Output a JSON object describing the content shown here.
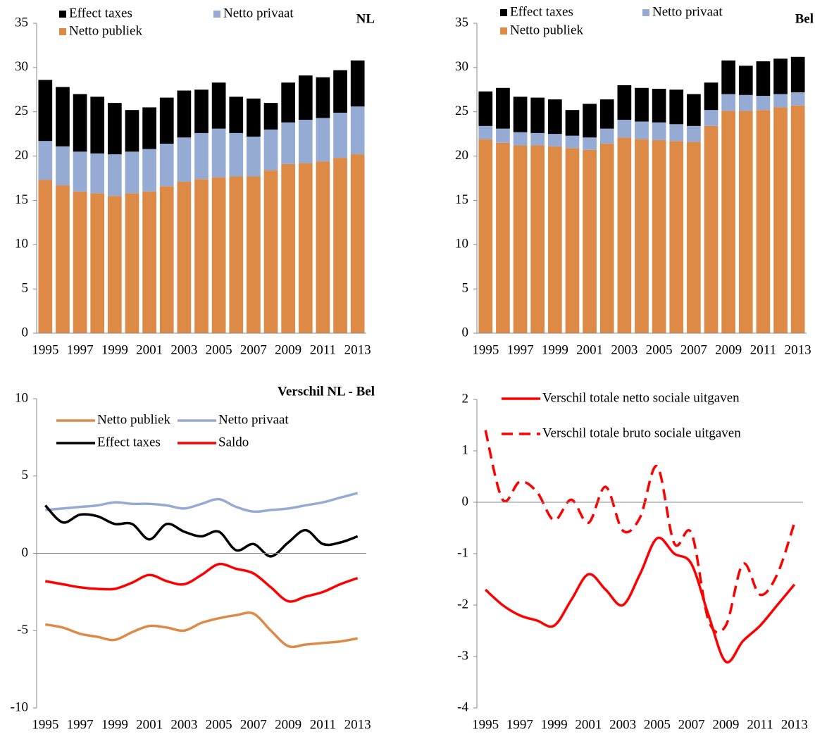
{
  "chart_data": [
    {
      "type": "bar",
      "stacked": true,
      "title": "NL",
      "categories": [
        "1995",
        null,
        "1997",
        null,
        "1999",
        null,
        "2001",
        null,
        "2003",
        null,
        "2005",
        null,
        "2007",
        null,
        "2009",
        null,
        "2011",
        null,
        "2013"
      ],
      "series": [
        {
          "name": "Netto publiek",
          "color": "#de8a47",
          "values": [
            17.3,
            16.7,
            16.0,
            15.8,
            15.5,
            15.8,
            16.0,
            16.6,
            17.1,
            17.4,
            17.6,
            17.7,
            17.7,
            18.4,
            19.1,
            19.2,
            19.4,
            19.8,
            20.2
          ]
        },
        {
          "name": "Netto privaat",
          "color": "#95abd4",
          "values": [
            4.4,
            4.4,
            4.5,
            4.5,
            4.7,
            4.7,
            4.8,
            4.8,
            5.0,
            5.2,
            5.5,
            4.9,
            4.5,
            4.6,
            4.7,
            4.9,
            4.9,
            5.1,
            5.4
          ]
        },
        {
          "name": "Effect taxes",
          "color": "#000000",
          "values": [
            6.9,
            6.7,
            6.5,
            6.4,
            5.8,
            4.7,
            4.7,
            5.2,
            5.3,
            4.9,
            5.2,
            4.1,
            4.3,
            3.0,
            4.5,
            5.0,
            4.6,
            4.8,
            5.2
          ]
        }
      ],
      "ylim": [
        0,
        35
      ],
      "yticks": [
        0,
        5,
        10,
        15,
        20,
        25,
        30,
        35
      ]
    },
    {
      "type": "bar",
      "stacked": true,
      "title": "Bel",
      "categories": [
        "1995",
        null,
        "1997",
        null,
        "1999",
        null,
        "2001",
        null,
        "2003",
        null,
        "2005",
        null,
        "2007",
        null,
        "2009",
        null,
        "2011",
        null,
        "2013"
      ],
      "series": [
        {
          "name": "Netto publiek",
          "color": "#de8a47",
          "values": [
            21.9,
            21.5,
            21.2,
            21.2,
            21.1,
            20.9,
            20.7,
            21.4,
            22.1,
            21.9,
            21.8,
            21.7,
            21.6,
            23.4,
            25.1,
            25.1,
            25.2,
            25.5,
            25.7
          ]
        },
        {
          "name": "Netto privaat",
          "color": "#95abd4",
          "values": [
            1.5,
            1.6,
            1.5,
            1.4,
            1.4,
            1.4,
            1.4,
            1.7,
            2.0,
            2.0,
            2.0,
            1.9,
            1.8,
            1.8,
            1.9,
            1.8,
            1.6,
            1.5,
            1.5
          ]
        },
        {
          "name": "Effect taxes",
          "color": "#000000",
          "values": [
            3.9,
            4.6,
            4.0,
            4.0,
            3.9,
            2.9,
            3.8,
            3.3,
            3.9,
            3.8,
            3.8,
            3.9,
            3.6,
            3.1,
            3.8,
            3.3,
            3.9,
            4.0,
            4.0
          ]
        }
      ],
      "ylim": [
        0,
        35
      ],
      "yticks": [
        0,
        5,
        10,
        15,
        20,
        25,
        30,
        35
      ]
    },
    {
      "type": "line",
      "smooth": true,
      "title": "Verschil NL - Bel",
      "categories": [
        "1995",
        null,
        "1997",
        null,
        "1999",
        null,
        "2001",
        null,
        "2003",
        null,
        "2005",
        null,
        "2007",
        null,
        "2009",
        null,
        "2011",
        null,
        "2013"
      ],
      "series": [
        {
          "name": "Netto publiek",
          "color": "#de8a47",
          "values": [
            -4.6,
            -4.8,
            -5.2,
            -5.4,
            -5.6,
            -5.1,
            -4.7,
            -4.8,
            -5.0,
            -4.5,
            -4.2,
            -4.0,
            -3.9,
            -5.0,
            -6.0,
            -5.9,
            -5.8,
            -5.7,
            -5.5
          ]
        },
        {
          "name": "Netto privaat",
          "color": "#95abd4",
          "values": [
            2.8,
            2.9,
            3.0,
            3.1,
            3.3,
            3.2,
            3.2,
            3.1,
            2.9,
            3.2,
            3.5,
            3.0,
            2.7,
            2.8,
            2.9,
            3.1,
            3.3,
            3.6,
            3.9
          ]
        },
        {
          "name": "Effect taxes",
          "color": "#000000",
          "values": [
            3.1,
            2.0,
            2.5,
            2.4,
            1.9,
            1.9,
            0.9,
            1.9,
            1.4,
            1.1,
            1.4,
            0.2,
            0.6,
            -0.2,
            0.7,
            1.5,
            0.6,
            0.7,
            1.1
          ]
        },
        {
          "name": "Saldo",
          "color": "#ff0000",
          "values": [
            -1.8,
            -2.0,
            -2.2,
            -2.3,
            -2.3,
            -1.9,
            -1.4,
            -1.8,
            -2.0,
            -1.4,
            -0.7,
            -1.0,
            -1.3,
            -2.2,
            -3.1,
            -2.8,
            -2.5,
            -2.0,
            -1.6
          ]
        }
      ],
      "ylim": [
        -10,
        10
      ],
      "yticks": [
        -10,
        -5,
        0,
        5,
        10
      ]
    },
    {
      "type": "line",
      "smooth": true,
      "categories": [
        "1995",
        null,
        "1997",
        null,
        "1999",
        null,
        "2001",
        null,
        "2003",
        null,
        "2005",
        null,
        "2007",
        null,
        "2009",
        null,
        "2011",
        null,
        "2013"
      ],
      "series": [
        {
          "name": "Verschil totale netto sociale uitgaven",
          "color": "#ff0000",
          "dashed": false,
          "values": [
            -1.7,
            -2.0,
            -2.2,
            -2.3,
            -2.4,
            -1.9,
            -1.4,
            -1.7,
            -2.0,
            -1.4,
            -0.7,
            -1.0,
            -1.2,
            -2.2,
            -3.1,
            -2.7,
            -2.4,
            -2.0,
            -1.6
          ]
        },
        {
          "name": "Verschil totale bruto sociale uitgaven",
          "color": "#ff0000",
          "dashed": true,
          "values": [
            1.4,
            0.05,
            0.4,
            0.2,
            -0.35,
            0.05,
            -0.4,
            0.3,
            -0.55,
            -0.3,
            0.7,
            -0.8,
            -0.6,
            -2.3,
            -2.4,
            -1.2,
            -1.8,
            -1.4,
            -0.4
          ]
        }
      ],
      "ylim": [
        -4,
        2
      ],
      "yticks": [
        -4,
        -3,
        -2,
        -1,
        0,
        1,
        2
      ]
    }
  ]
}
